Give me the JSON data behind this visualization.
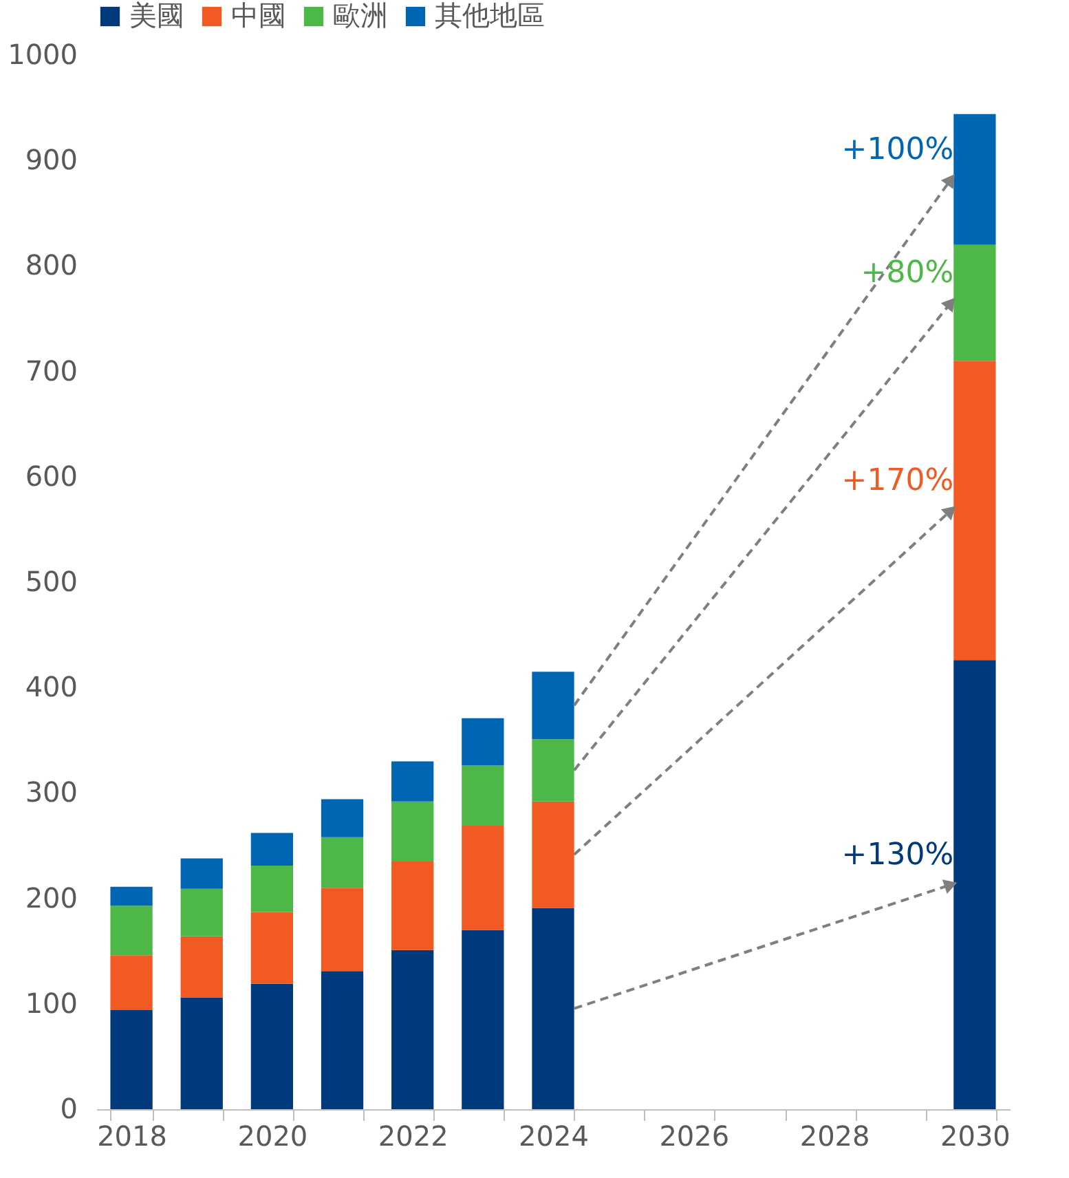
{
  "chart_data": {
    "type": "bar",
    "stacked": true,
    "categories": [
      "2018",
      null,
      "2020",
      null,
      "2022",
      null,
      "2024",
      null,
      "2026",
      null,
      "2028",
      null,
      "2030"
    ],
    "series": [
      {
        "name": "美國",
        "color": "#003a7d",
        "values": [
          94,
          106,
          119,
          131,
          151,
          170,
          191,
          null,
          null,
          null,
          null,
          null,
          426
        ]
      },
      {
        "name": "中國",
        "color": "#f15a22",
        "values": [
          52,
          58,
          68,
          79,
          84,
          99,
          101,
          null,
          null,
          null,
          null,
          null,
          284
        ]
      },
      {
        "name": "歐洲",
        "color": "#4db848",
        "values": [
          47,
          45,
          44,
          48,
          57,
          57,
          59,
          null,
          null,
          null,
          null,
          null,
          110
        ]
      },
      {
        "name": "其他地區",
        "color": "#0066b3",
        "values": [
          18,
          29,
          31,
          36,
          38,
          45,
          64,
          null,
          null,
          null,
          null,
          null,
          124
        ]
      }
    ],
    "ylim": [
      0,
      1000
    ],
    "yticks": [
      0,
      100,
      200,
      300,
      400,
      500,
      600,
      700,
      800,
      900,
      1000
    ],
    "grid": false,
    "legend": "top",
    "annotations": [
      "+130%",
      "+170%",
      "+80%",
      "+100%"
    ]
  }
}
